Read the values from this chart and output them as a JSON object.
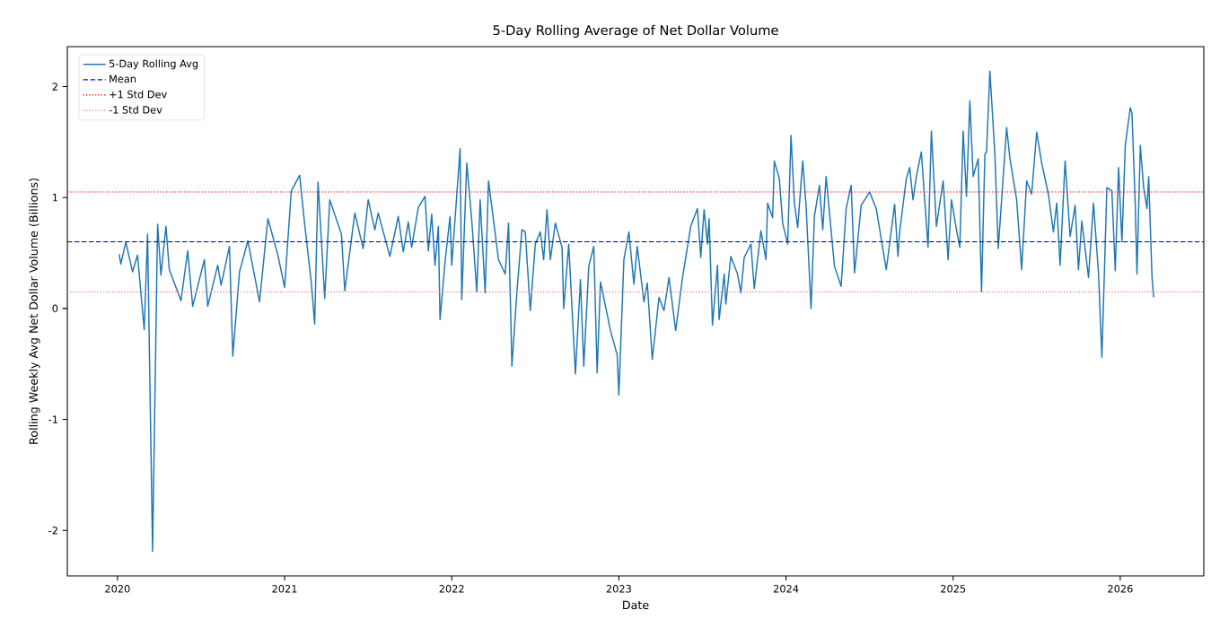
{
  "chart_data": {
    "type": "line",
    "title": "5-Day Rolling Average of Net Dollar Volume",
    "xlabel": "Date",
    "ylabel": "Rolling Weekly Avg Net Dollar Volume (Billions)",
    "x": [
      2020.01,
      2020.02,
      2020.05,
      2020.09,
      2020.12,
      2020.16,
      2020.18,
      2020.21,
      2020.24,
      2020.26,
      2020.29,
      2020.31,
      2020.38,
      2020.42,
      2020.45,
      2020.52,
      2020.54,
      2020.6,
      2020.62,
      2020.67,
      2020.69,
      2020.73,
      2020.78,
      2020.85,
      2020.9,
      2020.96,
      2021.0,
      2021.04,
      2021.09,
      2021.12,
      2021.16,
      2021.18,
      2021.2,
      2021.24,
      2021.27,
      2021.34,
      2021.36,
      2021.42,
      2021.47,
      2021.5,
      2021.54,
      2021.56,
      2021.63,
      2021.68,
      2021.71,
      2021.74,
      2021.76,
      2021.8,
      2021.84,
      2021.86,
      2021.88,
      2021.9,
      2021.92,
      2021.93,
      2021.96,
      2021.99,
      2022.0,
      2022.05,
      2022.06,
      2022.09,
      2022.12,
      2022.15,
      2022.17,
      2022.2,
      2022.22,
      2022.28,
      2022.32,
      2022.34,
      2022.36,
      2022.39,
      2022.42,
      2022.44,
      2022.47,
      2022.5,
      2022.53,
      2022.55,
      2022.57,
      2022.59,
      2022.62,
      2022.66,
      2022.67,
      2022.7,
      2022.74,
      2022.77,
      2022.79,
      2022.82,
      2022.85,
      2022.87,
      2022.89,
      2022.92,
      2022.95,
      2022.99,
      2023.0,
      2023.03,
      2023.06,
      2023.09,
      2023.11,
      2023.15,
      2023.17,
      2023.2,
      2023.24,
      2023.27,
      2023.3,
      2023.34,
      2023.38,
      2023.43,
      2023.47,
      2023.49,
      2023.51,
      2023.53,
      2023.54,
      2023.56,
      2023.59,
      2023.6,
      2023.63,
      2023.64,
      2023.67,
      2023.71,
      2023.73,
      2023.75,
      2023.79,
      2023.81,
      2023.85,
      2023.88,
      2023.89,
      2023.92,
      2023.93,
      2023.96,
      2023.98,
      2024.01,
      2024.03,
      2024.05,
      2024.07,
      2024.1,
      2024.12,
      2024.15,
      2024.17,
      2024.2,
      2024.22,
      2024.24,
      2024.29,
      2024.33,
      2024.36,
      2024.39,
      2024.41,
      2024.45,
      2024.5,
      2024.54,
      2024.6,
      2024.65,
      2024.67,
      2024.68,
      2024.72,
      2024.74,
      2024.76,
      2024.78,
      2024.81,
      2024.85,
      2024.87,
      2024.9,
      2024.94,
      2024.97,
      2024.99,
      2025.02,
      2025.04,
      2025.06,
      2025.08,
      2025.1,
      2025.12,
      2025.15,
      2025.17,
      2025.19,
      2025.2,
      2025.22,
      2025.25,
      2025.27,
      2025.32,
      2025.34,
      2025.38,
      2025.41,
      2025.44,
      2025.47,
      2025.5,
      2025.53,
      2025.57,
      2025.6,
      2025.62,
      2025.64,
      2025.67,
      2025.7,
      2025.73,
      2025.75,
      2025.77,
      2025.81,
      2025.84,
      2025.87,
      2025.89,
      2025.92,
      2025.95,
      2025.97,
      2025.99,
      2026.01,
      2026.03,
      2026.06,
      2026.07,
      2026.09,
      2026.1,
      2026.12,
      2026.14,
      2026.16,
      2026.17,
      2026.19,
      2026.2
    ],
    "series": [
      {
        "name": "5-Day Rolling Avg",
        "color": "#1f77b4",
        "values": [
          0.49,
          0.4,
          0.6,
          0.33,
          0.48,
          -0.19,
          0.67,
          -2.19,
          0.76,
          0.3,
          0.74,
          0.35,
          0.07,
          0.52,
          0.02,
          0.44,
          0.02,
          0.39,
          0.21,
          0.56,
          -0.43,
          0.33,
          0.61,
          0.06,
          0.81,
          0.48,
          0.19,
          1.06,
          1.2,
          0.76,
          0.23,
          -0.14,
          1.14,
          0.09,
          0.98,
          0.67,
          0.16,
          0.86,
          0.54,
          0.98,
          0.71,
          0.86,
          0.47,
          0.83,
          0.51,
          0.78,
          0.55,
          0.91,
          1.01,
          0.52,
          0.85,
          0.39,
          0.74,
          -0.1,
          0.42,
          0.83,
          0.39,
          1.44,
          0.08,
          1.31,
          0.79,
          0.15,
          0.98,
          0.14,
          1.15,
          0.44,
          0.31,
          0.77,
          -0.52,
          0.15,
          0.71,
          0.69,
          -0.02,
          0.58,
          0.69,
          0.44,
          0.89,
          0.44,
          0.77,
          0.55,
          0.0,
          0.58,
          -0.59,
          0.26,
          -0.52,
          0.38,
          0.56,
          -0.58,
          0.24,
          0.02,
          -0.2,
          -0.42,
          -0.78,
          0.44,
          0.69,
          0.22,
          0.56,
          0.06,
          0.23,
          -0.46,
          0.1,
          -0.02,
          0.28,
          -0.2,
          0.27,
          0.74,
          0.9,
          0.46,
          0.89,
          0.58,
          0.81,
          -0.15,
          0.39,
          -0.1,
          0.31,
          0.04,
          0.47,
          0.31,
          0.14,
          0.46,
          0.58,
          0.18,
          0.7,
          0.44,
          0.95,
          0.82,
          1.33,
          1.17,
          0.77,
          0.58,
          1.56,
          0.95,
          0.73,
          1.33,
          0.93,
          0.0,
          0.83,
          1.11,
          0.71,
          1.19,
          0.38,
          0.2,
          0.9,
          1.11,
          0.32,
          0.93,
          1.05,
          0.9,
          0.35,
          0.94,
          0.47,
          0.69,
          1.17,
          1.27,
          0.98,
          1.19,
          1.41,
          0.55,
          1.6,
          0.74,
          1.15,
          0.44,
          0.98,
          0.71,
          0.55,
          1.6,
          1.01,
          1.87,
          1.19,
          1.35,
          0.15,
          1.39,
          1.41,
          2.14,
          1.39,
          0.54,
          1.63,
          1.35,
          0.98,
          0.35,
          1.15,
          1.03,
          1.59,
          1.31,
          1.03,
          0.69,
          0.95,
          0.39,
          1.33,
          0.65,
          0.93,
          0.35,
          0.79,
          0.28,
          0.95,
          0.31,
          -0.44,
          1.09,
          1.06,
          0.34,
          1.27,
          0.6,
          1.47,
          1.81,
          1.76,
          0.93,
          0.31,
          1.47,
          1.09,
          0.9,
          1.19,
          0.28,
          0.1
        ]
      }
    ],
    "ref_lines": [
      {
        "axis": "y",
        "value": 0.6,
        "label": "Mean",
        "color": "#0000ff",
        "line_style": "dashed"
      },
      {
        "axis": "y",
        "value": 1.05,
        "label": "+1 Std Dev",
        "color": "#ff0000",
        "line_style": "dotted"
      },
      {
        "axis": "y",
        "value": 0.15,
        "label": "-1 Std Dev",
        "color": "#ff8080",
        "line_style": "dotted"
      }
    ],
    "xlim": [
      2019.7,
      2026.5
    ],
    "ylim": [
      -2.41,
      2.36
    ],
    "xticks": [
      2020,
      2021,
      2022,
      2023,
      2024,
      2025,
      2026
    ],
    "yticks": [
      -2,
      -1,
      0,
      1,
      2
    ],
    "legend": "top left",
    "line_style": "solid",
    "grid": false
  }
}
